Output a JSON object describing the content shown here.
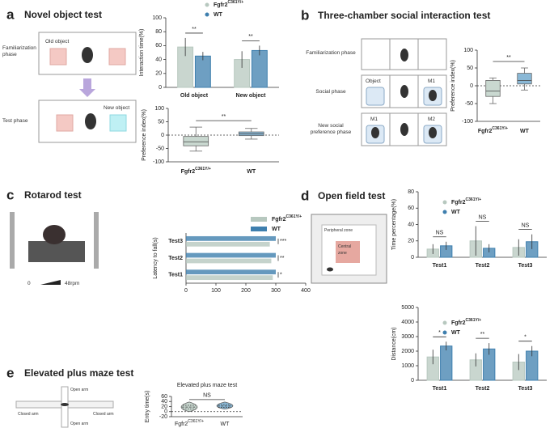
{
  "panels": [
    {
      "letter": "a",
      "title": "Novel object test",
      "labels": [
        "Familiarization phase",
        "Test phase",
        "Old object",
        "New object"
      ]
    },
    {
      "letter": "b",
      "title": "Three-chamber social interaction test",
      "labels": [
        "Familiarization phase",
        "Social phase",
        "New social preference phase",
        "Object",
        "M1",
        "M1",
        "M2"
      ]
    },
    {
      "letter": "c",
      "title": "Rotarod test",
      "labels": [
        "0",
        "48rpm"
      ]
    },
    {
      "letter": "d",
      "title": "Open field test",
      "labels": [
        "Peripheral zone",
        "Central zone"
      ]
    },
    {
      "letter": "e",
      "title": "Elevated plus maze test",
      "labels": [
        "Open arm",
        "Closed arm",
        "Closed arm",
        "Open arm"
      ]
    }
  ],
  "chart_data": [
    {
      "type": "bar",
      "ylabel": "Interaction time(%)",
      "categories": [
        "Old object",
        "New object"
      ],
      "series": [
        {
          "name": "Fgfr2C361Y/+",
          "color": "#b7c8bf",
          "values": [
            58,
            40
          ],
          "errors": [
            13,
            12
          ]
        },
        {
          "name": "WT",
          "color": "#3e7fae",
          "values": [
            45,
            53
          ],
          "errors": [
            6,
            7
          ]
        }
      ],
      "significance": [
        "**",
        "**"
      ],
      "ylim": [
        0,
        100
      ],
      "yticks": [
        0,
        20,
        40,
        60,
        80,
        100
      ]
    },
    {
      "type": "box",
      "ylabel": "Preference index(%)",
      "categories": [
        "Fgfr2C361Y/+",
        "WT"
      ],
      "boxes": [
        {
          "min": -60,
          "q1": -40,
          "median": -25,
          "q3": -5,
          "max": 30,
          "color": "#c9d8d0"
        },
        {
          "min": -15,
          "q1": -2,
          "median": 5,
          "q3": 12,
          "max": 25,
          "color": "#8ab8d6"
        }
      ],
      "significance": "**",
      "refline": 0,
      "ylim": [
        -100,
        100
      ],
      "yticks": [
        -100,
        -50,
        0,
        50,
        100
      ]
    },
    {
      "type": "box",
      "ylabel": "Preference index(%)",
      "categories": [
        "Fgfr2C361Y/+",
        "WT"
      ],
      "boxes": [
        {
          "min": -50,
          "q1": -30,
          "median": -15,
          "q3": 15,
          "max": 22,
          "color": "#c9d8d0"
        },
        {
          "min": -12,
          "q1": 5,
          "median": 15,
          "q3": 35,
          "max": 50,
          "color": "#8ab8d6"
        }
      ],
      "significance": "**",
      "refline": 0,
      "ylim": [
        -100,
        100
      ],
      "yticks": [
        -100,
        -50,
        0,
        50,
        100
      ]
    },
    {
      "type": "hbar",
      "ylabel": "Latency to fall(s)",
      "categories": [
        "Test1",
        "Test2",
        "Test3"
      ],
      "series": [
        {
          "name": "Fgfr2C361Y/+",
          "color": "#b7c8bf",
          "values": [
            290,
            285,
            280
          ]
        },
        {
          "name": "WT",
          "color": "#3e7fae",
          "values": [
            300,
            300,
            300
          ]
        }
      ],
      "significance": [
        "*",
        "**",
        "***"
      ],
      "xlim": [
        0,
        400
      ],
      "xticks": [
        0,
        100,
        200,
        300,
        400
      ]
    },
    {
      "type": "bar",
      "ylabel": "Time percentage(%)",
      "categories": [
        "Test1",
        "Test2",
        "Test3"
      ],
      "series": [
        {
          "name": "Fgfr2C361Y/+",
          "color": "#b7c8bf",
          "values": [
            10,
            20,
            12
          ],
          "errors": [
            6,
            18,
            10
          ]
        },
        {
          "name": "WT",
          "color": "#3e7fae",
          "values": [
            14,
            11,
            19
          ],
          "errors": [
            5,
            5,
            9
          ]
        }
      ],
      "significance": [
        "NS",
        "NS",
        "NS"
      ],
      "ylim": [
        0,
        80
      ],
      "yticks": [
        0,
        20,
        40,
        60,
        80
      ]
    },
    {
      "type": "bar",
      "ylabel": "Distance(cm)",
      "categories": [
        "Test1",
        "Test2",
        "Test3"
      ],
      "series": [
        {
          "name": "Fgfr2C361Y/+",
          "color": "#b7c8bf",
          "values": [
            1600,
            1400,
            1250
          ],
          "errors": [
            500,
            450,
            550
          ]
        },
        {
          "name": "WT",
          "color": "#3e7fae",
          "values": [
            2350,
            2150,
            2000
          ],
          "errors": [
            300,
            400,
            350
          ]
        }
      ],
      "significance": [
        "*",
        "**",
        "*"
      ],
      "ylim": [
        0,
        5000
      ],
      "yticks": [
        0,
        1000,
        2000,
        3000,
        4000,
        5000
      ]
    },
    {
      "type": "violin",
      "title": "Elevated plus maze test",
      "ylabel": "Entry time(s)",
      "categories": [
        "Fgfr2C361Y/+",
        "WT"
      ],
      "violins": [
        {
          "min": 0,
          "q1": 10,
          "median": 18,
          "q3": 25,
          "max": 38,
          "color": "#c9d8d0"
        },
        {
          "min": 10,
          "q1": 17,
          "median": 22,
          "q3": 28,
          "max": 38,
          "color": "#8ab8d6"
        }
      ],
      "significance": "NS",
      "refline": 0,
      "ylim": [
        -20,
        60
      ],
      "yticks": [
        -20,
        0,
        20,
        40,
        60
      ]
    }
  ]
}
